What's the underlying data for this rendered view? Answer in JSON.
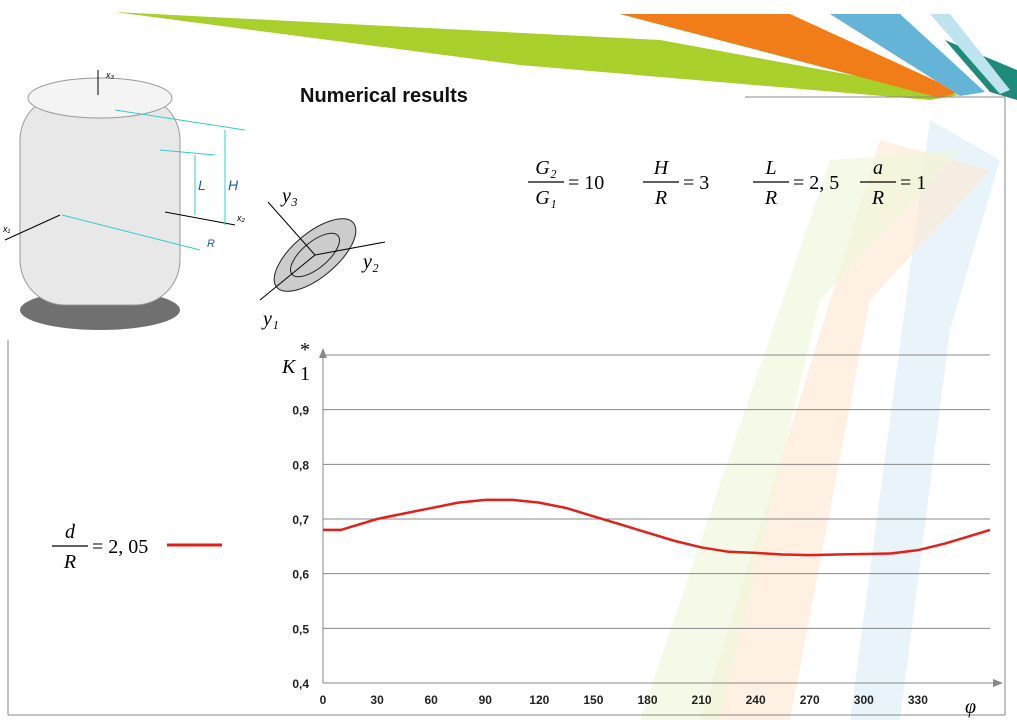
{
  "heading": "Numerical results",
  "parameters": [
    {
      "numerator": "G₂",
      "denominator": "G₁",
      "rhs": "= 10"
    },
    {
      "numerator": "H",
      "denominator": "R",
      "rhs": "= 3"
    },
    {
      "numerator": "L",
      "denominator": "R",
      "rhs": "= 2, 5"
    },
    {
      "numerator": "a",
      "denominator": "R",
      "rhs": "= 1"
    }
  ],
  "figure": {
    "axes": [
      "x₁",
      "x₂",
      "x₃"
    ],
    "dimensions": [
      "L",
      "H",
      "R"
    ],
    "local_axes": [
      "y₁",
      "y₂",
      "y₃"
    ]
  },
  "chart_data": {
    "type": "line",
    "legend": {
      "numerator": "d",
      "denominator": "R",
      "rhs": "= 2, 05"
    },
    "y_label": {
      "base": "K",
      "sub": "1",
      "sup": "*"
    },
    "x_label": "φ",
    "x": [
      0,
      10,
      20,
      30,
      45,
      60,
      75,
      90,
      105,
      120,
      135,
      150,
      165,
      180,
      195,
      210,
      225,
      240,
      255,
      270,
      285,
      300,
      315,
      330,
      345,
      360,
      370
    ],
    "series": [
      {
        "color": "#e2201a",
        "values": [
          0.68,
          0.68,
          0.69,
          0.7,
          0.71,
          0.72,
          0.73,
          0.735,
          0.735,
          0.73,
          0.72,
          0.705,
          0.69,
          0.675,
          0.66,
          0.648,
          0.64,
          0.638,
          0.635,
          0.634,
          0.635,
          0.636,
          0.637,
          0.643,
          0.655,
          0.67,
          0.68
        ]
      }
    ],
    "xlim": [
      0,
      370
    ],
    "xticks": [
      0,
      30,
      60,
      90,
      120,
      150,
      180,
      210,
      240,
      270,
      300,
      330
    ],
    "ylim": [
      0.4,
      1.0
    ],
    "yticks": [
      {
        "value": 0.4,
        "label": "0,4"
      },
      {
        "value": 0.5,
        "label": "0,5"
      },
      {
        "value": 0.6,
        "label": "0,6"
      },
      {
        "value": 0.7,
        "label": "0,7"
      },
      {
        "value": 0.8,
        "label": "0,8"
      },
      {
        "value": 0.9,
        "label": "0,9"
      }
    ],
    "grid": true
  }
}
